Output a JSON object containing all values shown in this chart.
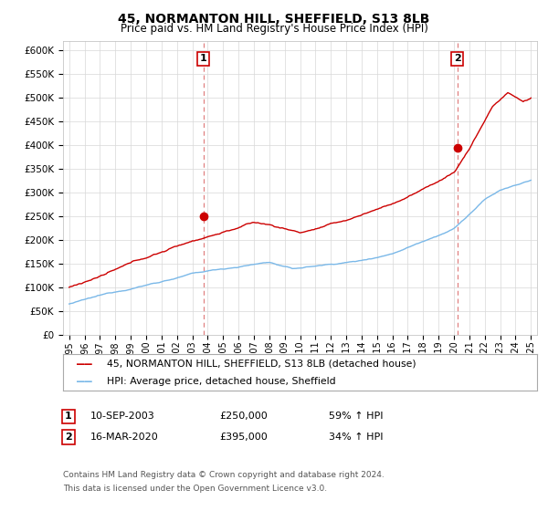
{
  "title": "45, NORMANTON HILL, SHEFFIELD, S13 8LB",
  "subtitle": "Price paid vs. HM Land Registry's House Price Index (HPI)",
  "legend_line1": "45, NORMANTON HILL, SHEFFIELD, S13 8LB (detached house)",
  "legend_line2": "HPI: Average price, detached house, Sheffield",
  "annotation1_date": "10-SEP-2003",
  "annotation1_price": "£250,000",
  "annotation1_hpi": "59% ↑ HPI",
  "annotation2_date": "16-MAR-2020",
  "annotation2_price": "£395,000",
  "annotation2_hpi": "34% ↑ HPI",
  "footnote1": "Contains HM Land Registry data © Crown copyright and database right 2024.",
  "footnote2": "This data is licensed under the Open Government Licence v3.0.",
  "hpi_color": "#7ab8e8",
  "price_color": "#cc0000",
  "dashed_line_color": "#e08080",
  "ylim_min": 0,
  "ylim_max": 620000,
  "xlim_min": 1994.6,
  "xlim_max": 2025.4,
  "yticks": [
    0,
    50000,
    100000,
    150000,
    200000,
    250000,
    300000,
    350000,
    400000,
    450000,
    500000,
    550000,
    600000
  ],
  "t1_x": 2003.71,
  "t1_y": 250000,
  "t2_x": 2020.21,
  "t2_y": 395000
}
